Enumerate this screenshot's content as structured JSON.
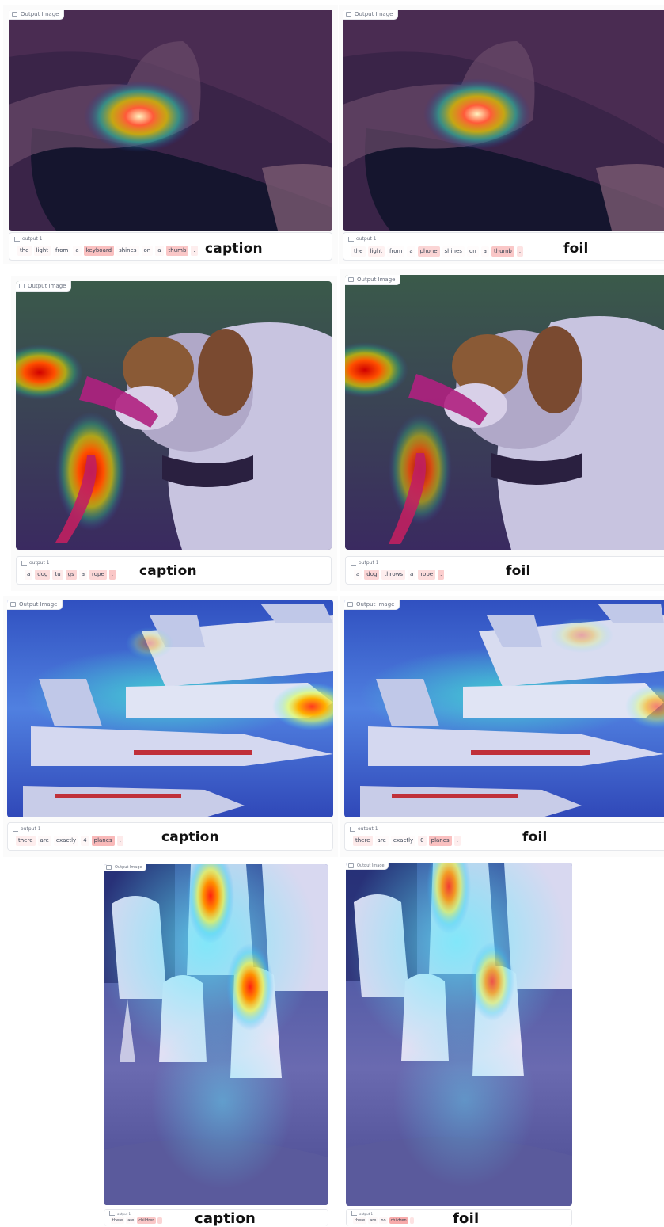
{
  "image_badge": "Output Image",
  "output_label": "output 1",
  "rows": [
    {
      "left": {
        "tag": "caption",
        "tokens": [
          {
            "t": "the",
            "w": 0.05
          },
          {
            "t": "light",
            "w": 0.05
          },
          {
            "t": "from",
            "w": 0.02
          },
          {
            "t": "a",
            "w": 0.03
          },
          {
            "t": "keyboard",
            "w": 0.45
          },
          {
            "t": "shines",
            "w": 0.03
          },
          {
            "t": "on",
            "w": 0.03
          },
          {
            "t": "a",
            "w": 0.05
          },
          {
            "t": "thumb",
            "w": 0.4
          },
          {
            "t": ".",
            "w": 0.12
          }
        ]
      },
      "right": {
        "tag": "foil",
        "tokens": [
          {
            "t": "the",
            "w": 0.04
          },
          {
            "t": "light",
            "w": 0.1
          },
          {
            "t": "from",
            "w": 0.02
          },
          {
            "t": "a",
            "w": 0.02
          },
          {
            "t": "phone",
            "w": 0.3
          },
          {
            "t": "shines",
            "w": 0.02
          },
          {
            "t": "on",
            "w": 0.02
          },
          {
            "t": "a",
            "w": 0.03
          },
          {
            "t": "thumb",
            "w": 0.4
          },
          {
            "t": ".",
            "w": 0.2
          }
        ]
      }
    },
    {
      "left": {
        "tag": "caption",
        "tokens": [
          {
            "t": "a",
            "w": 0.05
          },
          {
            "t": "dog",
            "w": 0.25
          },
          {
            "t": "tu",
            "w": 0.15
          },
          {
            "t": "gs",
            "w": 0.3
          },
          {
            "t": "a",
            "w": 0.05
          },
          {
            "t": "rope",
            "w": 0.28
          },
          {
            "t": ".",
            "w": 0.4
          }
        ]
      },
      "right": {
        "tag": "foil",
        "tokens": [
          {
            "t": "a",
            "w": 0.03
          },
          {
            "t": "dog",
            "w": 0.3
          },
          {
            "t": "throws",
            "w": 0.12
          },
          {
            "t": "a",
            "w": 0.03
          },
          {
            "t": "rope",
            "w": 0.25
          },
          {
            "t": ".",
            "w": 0.35
          }
        ]
      }
    },
    {
      "left": {
        "tag": "caption",
        "tokens": [
          {
            "t": "there",
            "w": 0.12
          },
          {
            "t": "are",
            "w": 0.04
          },
          {
            "t": "exactly",
            "w": 0.03
          },
          {
            "t": "4",
            "w": 0.06
          },
          {
            "t": "planes",
            "w": 0.5
          },
          {
            "t": ".",
            "w": 0.15
          }
        ]
      },
      "right": {
        "tag": "foil",
        "tokens": [
          {
            "t": "there",
            "w": 0.15
          },
          {
            "t": "are",
            "w": 0.03
          },
          {
            "t": "exactly",
            "w": 0.03
          },
          {
            "t": "0",
            "w": 0.1
          },
          {
            "t": "planes",
            "w": 0.45
          },
          {
            "t": ".",
            "w": 0.12
          }
        ]
      }
    },
    {
      "left": {
        "tag": "caption",
        "tokens": [
          {
            "t": "there",
            "w": 0.05
          },
          {
            "t": "are",
            "w": 0.05
          },
          {
            "t": "children",
            "w": 0.4
          },
          {
            "t": ".",
            "w": 0.3
          }
        ]
      },
      "right": {
        "tag": "foil",
        "tokens": [
          {
            "t": "there",
            "w": 0.05
          },
          {
            "t": "are",
            "w": 0.04
          },
          {
            "t": "no",
            "w": 0.06
          },
          {
            "t": "children",
            "w": 0.6
          },
          {
            "t": ".",
            "w": 0.2
          }
        ]
      }
    }
  ],
  "colors": {
    "token_heat": "#ef4444",
    "tag_text": "#111111"
  }
}
